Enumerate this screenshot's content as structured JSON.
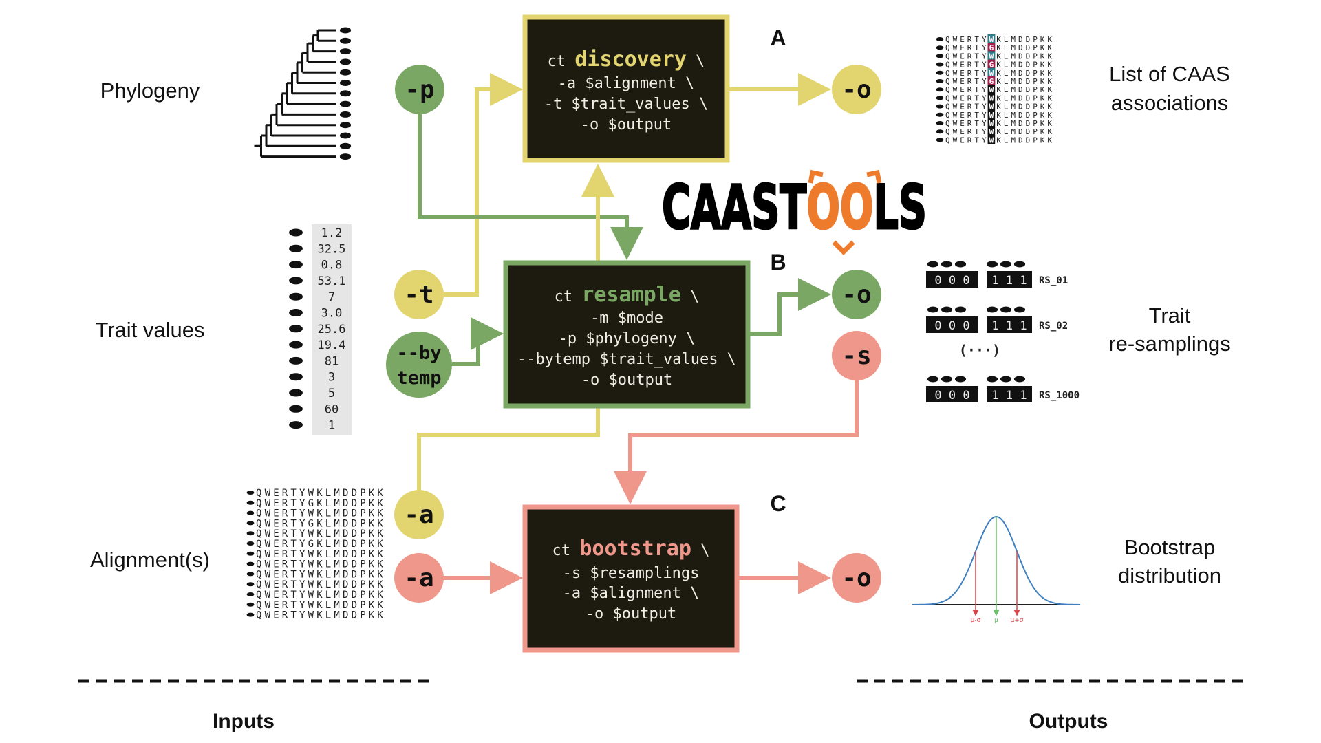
{
  "colors": {
    "yellow": "#e2d46e",
    "green": "#7aa864",
    "pink": "#ef978b",
    "box_bg": "#1d1a10",
    "logo_orange": "#ee7b2c",
    "teal": "#2b7f8b",
    "maroon": "#a3204b"
  },
  "logo": {
    "part1": "CAAST",
    "part2": "OO",
    "part3": "LS"
  },
  "inputs": {
    "phylogeny": "Phylogeny",
    "trait_values": "Trait values",
    "alignments": "Alignment(s)",
    "footer": "Inputs"
  },
  "outputs": {
    "caas_line1": "List of CAAS",
    "caas_line2": "associations",
    "resample_line1": "Trait",
    "resample_line2": "re-samplings",
    "bootstrap_line1": "Bootstrap",
    "bootstrap_line2": "distribution",
    "footer": "Outputs"
  },
  "panels": {
    "a": "A",
    "b": "B",
    "c": "C"
  },
  "commands": {
    "discovery": {
      "prefix": "ct ",
      "name": "discovery",
      "suffix": " \\",
      "lines": [
        "-a $alignment \\",
        "-t $trait_values \\",
        "-o $output"
      ]
    },
    "resample": {
      "prefix": "ct ",
      "name": "resample",
      "suffix": " \\",
      "lines": [
        "-m $mode",
        "-p $phylogeny \\",
        "--bytemp $trait_values \\",
        "-o $output"
      ]
    },
    "bootstrap": {
      "prefix": "ct ",
      "name": "bootstrap",
      "suffix": " \\",
      "lines": [
        "-s $resamplings",
        "-a $alignment \\",
        "-o $output"
      ]
    }
  },
  "flags": {
    "p": "-p",
    "t": "-t",
    "bytemp_1": "--by",
    "bytemp_2": "temp",
    "a_yellow": "-a",
    "a_pink": "-a",
    "o_discovery": "-o",
    "o_resample": "-o",
    "s": "-s",
    "o_bootstrap": "-o"
  },
  "trait_values": [
    "1.2",
    "32.5",
    "0.8",
    "53.1",
    "7",
    "3.0",
    "25.6",
    "19.4",
    "81",
    "3",
    "5",
    "60",
    "1"
  ],
  "alignment_rows": [
    "QWERTYWKLMDDPKK",
    "QWERTYGKLMDDPKK",
    "QWERTYWKLMDDPKK",
    "QWERTYGKLMDDPKK",
    "QWERTYWKLMDDPKK",
    "QWERTYGKLMDDPKK",
    "QWERTYWKLMDDPKK",
    "QWERTYWKLMDDPKK",
    "QWERTYWKLMDDPKK",
    "QWERTYWKLMDDPKK",
    "QWERTYWKLMDDPKK",
    "QWERTYWKLMDDPKK",
    "QWERTYWKLMDDPKK"
  ],
  "caas_rows": [
    "QWERTYWKLMDDPKK",
    "QWERTYGKLMDDPKK",
    "QWERTYWKLMDDPKK",
    "QWERTYGKLMDDPKK",
    "QWERTYWKLMDDPKK",
    "QWERTYGKLMDDPKK",
    "QWERTYWKLMDDPKK",
    "QWERTYWKLMDDPKK",
    "QWERTYWKLMDDPKK",
    "QWERTYWKLMDDPKK",
    "QWERTYWKLMDDPKK",
    "QWERTYWKLMDDPKK",
    "QWERTYWKLMDDPKK"
  ],
  "resamplings": [
    {
      "group0": "0 0 0",
      "group1": "1 1 1",
      "label": "RS_01"
    },
    {
      "group0": "0 0 0",
      "group1": "1 1 1",
      "label": "RS_02"
    },
    {
      "group0": "0 0 0",
      "group1": "1 1 1",
      "label": "RS_1000"
    }
  ],
  "resampling_ellipsis": "(···)",
  "bootstrap_plot": {
    "labels": [
      "μ-σ",
      "μ",
      "μ+σ"
    ]
  }
}
